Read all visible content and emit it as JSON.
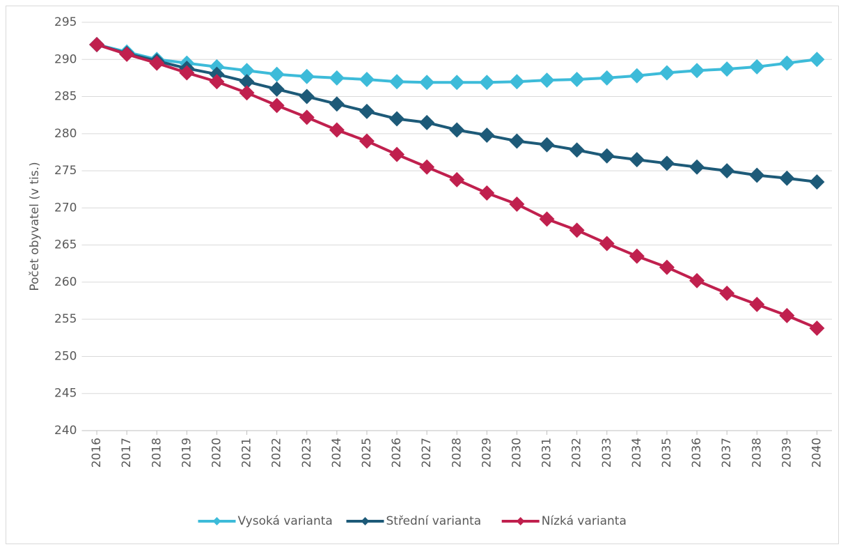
{
  "chart_data": {
    "type": "line",
    "y_label": "Počet obyvatel (v tis.)",
    "categories": [
      "2016",
      "2017",
      "2018",
      "2019",
      "2020",
      "2021",
      "2022",
      "2023",
      "2024",
      "2025",
      "2026",
      "2027",
      "2028",
      "2029",
      "2030",
      "2031",
      "2032",
      "2033",
      "2034",
      "2035",
      "2036",
      "2037",
      "2038",
      "2039",
      "2040"
    ],
    "series": [
      {
        "name": "Vysoká varianta",
        "color": "#3dbbd9",
        "values": [
          292,
          291,
          290,
          289.5,
          289,
          288.5,
          288,
          287.7,
          287.5,
          287.3,
          287,
          286.9,
          286.9,
          286.9,
          287,
          287.2,
          287.3,
          287.5,
          287.8,
          288.2,
          288.5,
          288.7,
          289,
          289.5,
          290
        ]
      },
      {
        "name": "Střední varianta",
        "color": "#1d5a78",
        "values": [
          292,
          290.8,
          289.8,
          288.8,
          288,
          287,
          286,
          285,
          284,
          283,
          282,
          281.5,
          280.5,
          279.8,
          279,
          278.5,
          277.8,
          277,
          276.5,
          276,
          275.5,
          275,
          274.4,
          274,
          273.5
        ]
      },
      {
        "name": "Nízká varianta",
        "color": "#c0204e",
        "values": [
          292,
          290.7,
          289.5,
          288.2,
          287,
          285.5,
          283.8,
          282.2,
          280.5,
          279,
          277.2,
          275.5,
          273.8,
          272,
          270.5,
          268.5,
          267,
          265.2,
          263.5,
          262,
          260.2,
          258.5,
          257,
          255.5,
          253.8
        ]
      }
    ],
    "ylim": [
      240,
      295
    ],
    "yticks": [
      240,
      245,
      250,
      255,
      260,
      265,
      270,
      275,
      280,
      285,
      290,
      295
    ],
    "grid": true,
    "legend": "bottom"
  }
}
